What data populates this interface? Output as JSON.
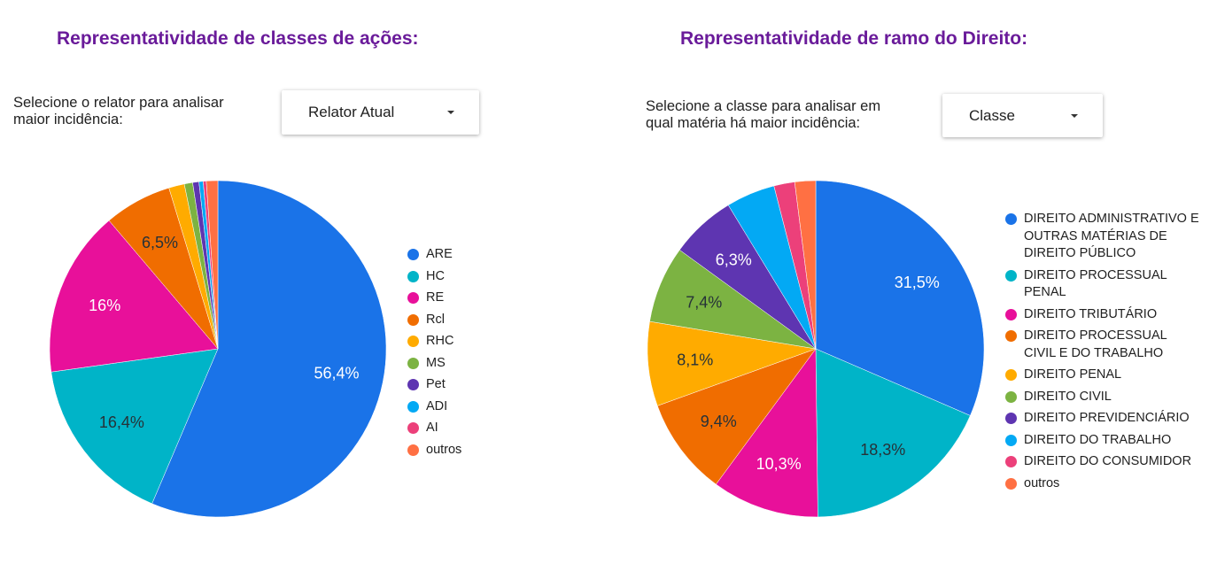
{
  "left_panel": {
    "title": "Representatividade de classes de ações:",
    "prompt": "Selecione o relator para analisar maior incidência:",
    "dropdown": {
      "selected": "Relator Atual",
      "icon": "caret-down-icon"
    }
  },
  "right_panel": {
    "title": "Representatividade de ramo do Direito:",
    "prompt": "Selecione a classe para analisar em qual matéria há maior incidência:",
    "dropdown": {
      "selected": "Classe",
      "icon": "caret-down-icon"
    }
  },
  "chart_data": [
    {
      "type": "pie",
      "legend_position": "right",
      "slices": [
        {
          "label": "ARE",
          "value": 56.4,
          "display": "56,4%",
          "color": "#1a73e8",
          "label_color": "#ffffff"
        },
        {
          "label": "HC",
          "value": 16.4,
          "display": "16,4%",
          "color": "#00b4c8",
          "label_color": "#263238"
        },
        {
          "label": "RE",
          "value": 16.0,
          "display": "16%",
          "color": "#e8109a",
          "label_color": "#ffffff"
        },
        {
          "label": "Rcl",
          "value": 6.5,
          "display": "6,5%",
          "color": "#f06d00",
          "label_color": "#263238"
        },
        {
          "label": "RHC",
          "value": 1.5,
          "display": "",
          "color": "#ffab00",
          "label_color": "#263238"
        },
        {
          "label": "MS",
          "value": 0.8,
          "display": "",
          "color": "#7cb342",
          "label_color": "#263238"
        },
        {
          "label": "Pet",
          "value": 0.6,
          "display": "",
          "color": "#5e35b1",
          "label_color": "#263238"
        },
        {
          "label": "ADI",
          "value": 0.4,
          "display": "",
          "color": "#03a9f4",
          "label_color": "#263238"
        },
        {
          "label": "AI",
          "value": 0.3,
          "display": "",
          "color": "#ec407a",
          "label_color": "#263238"
        },
        {
          "label": "outros",
          "value": 1.1,
          "display": "",
          "color": "#ff7043",
          "label_color": "#263238"
        }
      ]
    },
    {
      "type": "pie",
      "legend_position": "right",
      "slices": [
        {
          "label": "DIREITO ADMINISTRATIVO E OUTRAS MATÉRIAS DE DIREITO PÚBLICO",
          "value": 31.5,
          "display": "31,5%",
          "color": "#1a73e8",
          "label_color": "#ffffff"
        },
        {
          "label": "DIREITO PROCESSUAL PENAL",
          "value": 18.3,
          "display": "18,3%",
          "color": "#00b4c8",
          "label_color": "#263238"
        },
        {
          "label": "DIREITO TRIBUTÁRIO",
          "value": 10.3,
          "display": "10,3%",
          "color": "#e8109a",
          "label_color": "#ffffff"
        },
        {
          "label": "DIREITO PROCESSUAL CIVIL E DO TRABALHO",
          "value": 9.4,
          "display": "9,4%",
          "color": "#f06d00",
          "label_color": "#263238"
        },
        {
          "label": "DIREITO PENAL",
          "value": 8.1,
          "display": "8,1%",
          "color": "#ffab00",
          "label_color": "#263238"
        },
        {
          "label": "DIREITO CIVIL",
          "value": 7.4,
          "display": "7,4%",
          "color": "#7cb342",
          "label_color": "#263238"
        },
        {
          "label": "DIREITO PREVIDENCIÁRIO",
          "value": 6.3,
          "display": "6,3%",
          "color": "#5e35b1",
          "label_color": "#ffffff"
        },
        {
          "label": "DIREITO DO TRABALHO",
          "value": 4.7,
          "display": "",
          "color": "#03a9f4",
          "label_color": "#263238"
        },
        {
          "label": "DIREITO DO CONSUMIDOR",
          "value": 2.0,
          "display": "",
          "color": "#ec407a",
          "label_color": "#263238"
        },
        {
          "label": "outros",
          "value": 2.0,
          "display": "",
          "color": "#ff7043",
          "label_color": "#263238"
        }
      ]
    }
  ]
}
